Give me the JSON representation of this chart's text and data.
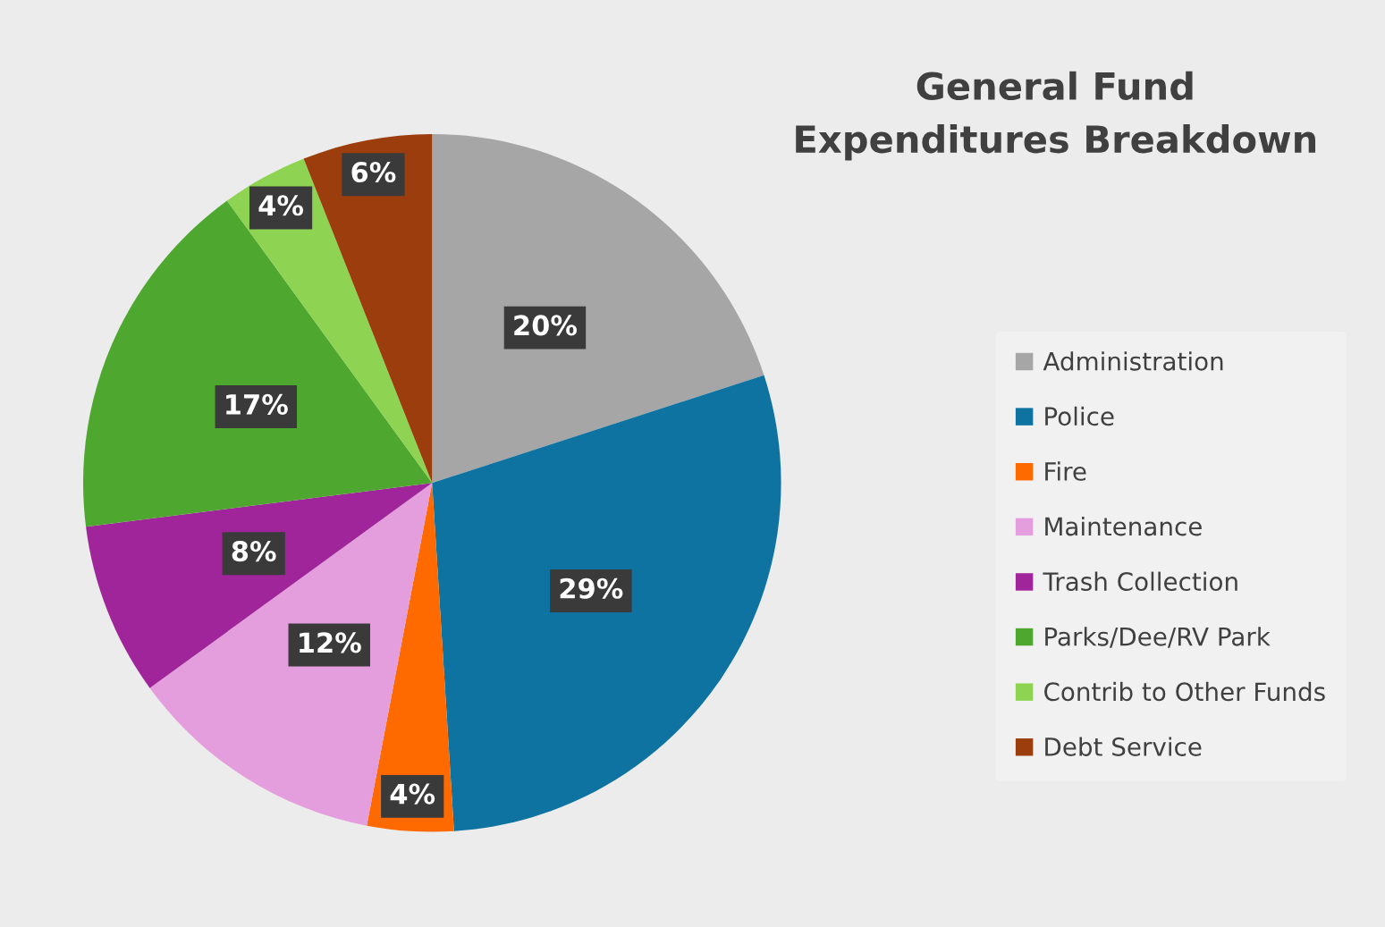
{
  "chart_data": {
    "type": "pie",
    "title": "General Fund\nExpenditures Breakdown",
    "categories": [
      "Administration",
      "Police",
      "Fire",
      "Maintenance",
      "Trash Collection",
      "Parks/Dee/RV Park",
      "Contrib to Other Funds",
      "Debt Service"
    ],
    "values": [
      20,
      29,
      4,
      12,
      8,
      17,
      4,
      6
    ],
    "colors": [
      "#a6a6a6",
      "#0e73a0",
      "#ff6a00",
      "#e59edd",
      "#a0259a",
      "#4ea72e",
      "#8ed452",
      "#9c3d0e"
    ],
    "value_labels": [
      "20%",
      "29%",
      "4%",
      "12%",
      "8%",
      "17%",
      "4%",
      "6%"
    ],
    "legend": "right"
  }
}
